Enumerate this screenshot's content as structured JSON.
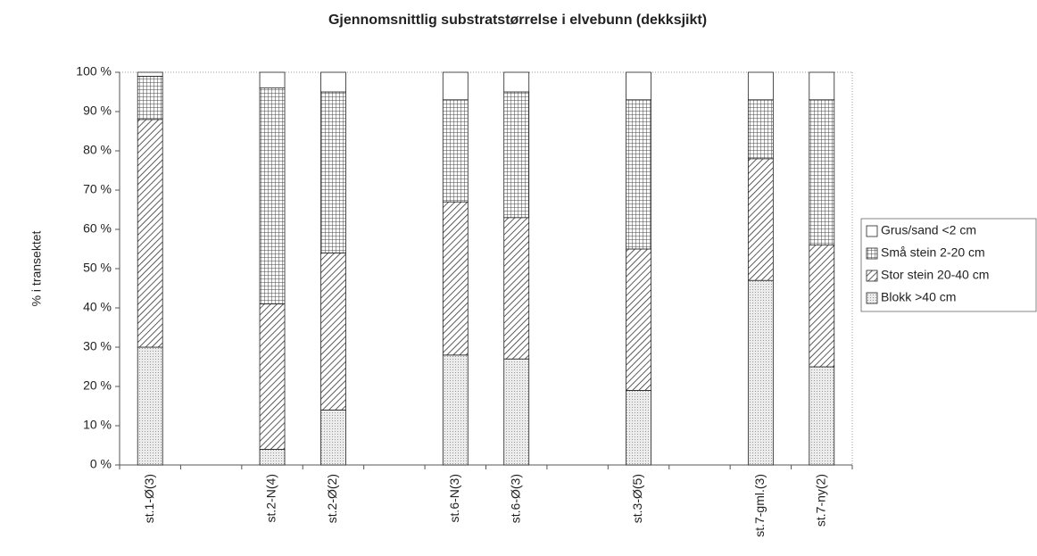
{
  "chart_data": {
    "type": "stacked_bar",
    "title": "Gjennomsnittlig substratstørrelse i elvebunn (dekksjikt)",
    "y_label": "% i transektet",
    "categories": [
      "st.1-Ø(3)",
      null,
      "st.2-N(4)",
      "st.2-Ø(2)",
      null,
      "st.6-N(3)",
      "st.6-Ø(3)",
      null,
      "st.3-Ø(5)",
      null,
      "st.7-gml.(3)",
      "st.7-ny(2)"
    ],
    "series": [
      {
        "name": "Blokk >40 cm",
        "color": "#e4e4e4",
        "pattern": "dots",
        "values": [
          30,
          null,
          4,
          14,
          null,
          28,
          27,
          null,
          19,
          null,
          47,
          25
        ]
      },
      {
        "name": "Stor stein 20-40 cm",
        "color": "#ffffff",
        "pattern": "diagonal",
        "values": [
          58,
          null,
          37,
          40,
          null,
          39,
          36,
          null,
          36,
          null,
          31,
          31
        ]
      },
      {
        "name": "Små stein 2-20 cm",
        "color": "#ffffff",
        "pattern": "grid",
        "values": [
          11,
          null,
          55,
          41,
          null,
          26,
          32,
          null,
          38,
          null,
          15,
          37
        ]
      },
      {
        "name": "Grus/sand <2 cm",
        "color": "#ffffff",
        "pattern": "none",
        "values": [
          1,
          null,
          4,
          5,
          null,
          7,
          5,
          null,
          7,
          null,
          7,
          7
        ]
      }
    ],
    "ylim": [
      0,
      100
    ],
    "yticks": [
      {
        "value": 0,
        "label": "0 %"
      },
      {
        "value": 10,
        "label": "10 %"
      },
      {
        "value": 20,
        "label": "20 %"
      },
      {
        "value": 30,
        "label": "30 %"
      },
      {
        "value": 40,
        "label": "40 %"
      },
      {
        "value": 50,
        "label": "50 %"
      },
      {
        "value": 60,
        "label": "60 %"
      },
      {
        "value": 70,
        "label": "70 %"
      },
      {
        "value": 80,
        "label": "80 %"
      },
      {
        "value": 90,
        "label": "90 %"
      },
      {
        "value": 100,
        "label": "100 %"
      }
    ],
    "grid": false,
    "legend": "right"
  }
}
